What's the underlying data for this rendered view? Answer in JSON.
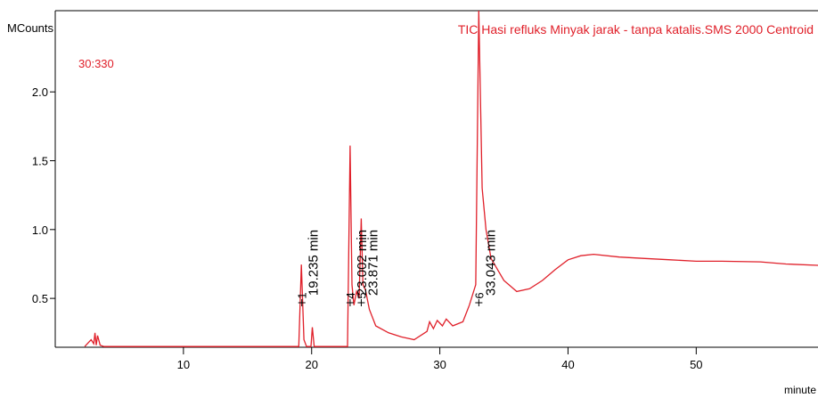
{
  "chart_data": {
    "type": "line",
    "title": "TIC Hasi refluks Minyak jarak - tanpa katalis.SMS 2000 Centroid",
    "subtitle": "30:330",
    "y_label": "MCounts",
    "x_label": "minute",
    "xlim": [
      0,
      59.5
    ],
    "xticks": [
      10,
      20,
      30,
      40,
      50
    ],
    "ylim": [
      0.145,
      2.59
    ],
    "yticks": [
      0.5,
      {
        "value": 1,
        "label": "1.0"
      },
      1.5,
      {
        "value": 2,
        "label": "2.0"
      }
    ],
    "x": [
      2.3,
      2.6,
      2.8,
      3.0,
      3.1,
      3.2,
      3.3,
      3.5,
      3.8,
      19.0,
      19.2,
      19.4,
      19.6,
      19.95,
      20.05,
      20.2,
      22.8,
      23.0,
      23.15,
      23.3,
      23.5,
      23.7,
      23.87,
      24.0,
      24.2,
      24.5,
      25,
      26,
      27,
      28,
      29,
      29.2,
      29.5,
      29.8,
      30.2,
      30.5,
      31,
      31.8,
      32.3,
      32.8,
      33.04,
      33.3,
      33.6,
      34,
      35,
      36,
      37,
      38,
      39,
      40,
      41,
      42,
      44,
      46,
      48,
      50,
      52,
      55,
      57,
      59.5
    ],
    "series": [
      {
        "name": "TIC",
        "color": "#e0202a",
        "values": [
          0.15,
          0.18,
          0.2,
          0.17,
          0.25,
          0.16,
          0.23,
          0.16,
          0.15,
          0.15,
          0.745,
          0.2,
          0.15,
          0.15,
          0.29,
          0.15,
          0.15,
          1.61,
          0.6,
          0.45,
          0.55,
          0.5,
          1.08,
          0.6,
          0.56,
          0.42,
          0.3,
          0.25,
          0.22,
          0.2,
          0.26,
          0.33,
          0.28,
          0.34,
          0.3,
          0.35,
          0.3,
          0.33,
          0.45,
          0.6,
          2.59,
          1.3,
          1.0,
          0.79,
          0.63,
          0.55,
          0.57,
          0.63,
          0.71,
          0.78,
          0.81,
          0.82,
          0.8,
          0.79,
          0.78,
          0.77,
          0.77,
          0.765,
          0.75,
          0.74
        ]
      }
    ],
    "annotations": [
      {
        "number": "1",
        "time": 19.235,
        "time_label": "19.235 min"
      },
      {
        "number": "4",
        "time": 23.002,
        "time_label": "23.002 min"
      },
      {
        "number": "5",
        "time": 23.871,
        "time_label": "23.871 min"
      },
      {
        "number": "6",
        "time": 33.043,
        "time_label": "33.043 min"
      }
    ]
  }
}
